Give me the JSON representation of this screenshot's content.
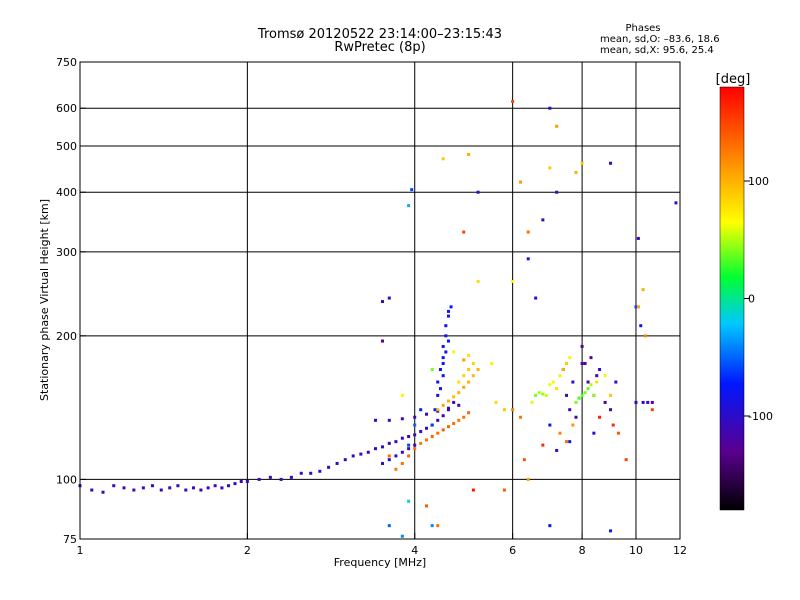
{
  "header": {
    "title": "Tromsø 20120522 23:14:00–23:15:43",
    "subtitle": "RwPretec (8p)",
    "stats_title": "Phases",
    "stats_line1": "mean, sd,O: –83.6, 18.6",
    "stats_line2": "mean, sd,X:  95.6, 25.4"
  },
  "chart_data": {
    "type": "scatter",
    "xlabel": "Frequency [MHz]",
    "ylabel": "Stationary phase Virtual Height [km]",
    "xscale": "log",
    "yscale": "log",
    "xlim": [
      1,
      12
    ],
    "ylim": [
      75,
      750
    ],
    "xticks": [
      1,
      2,
      4,
      6,
      8,
      10,
      12
    ],
    "yticks": [
      75,
      100,
      200,
      300,
      400,
      500,
      600,
      750
    ],
    "xgrid": [
      2,
      4,
      6,
      8,
      10
    ],
    "ygrid": [
      100,
      200,
      300,
      400,
      500,
      600
    ],
    "colorbar": {
      "label": "[deg]",
      "range": [
        -180,
        180
      ],
      "ticks": [
        100,
        0,
        -100
      ],
      "colormap": "rainbow (black → purple → blue → cyan → green → yellow → orange → red)"
    },
    "series": [
      {
        "values": [
          [
            1.0,
            97,
            -110
          ],
          [
            1.05,
            95,
            -105
          ],
          [
            1.1,
            94,
            -110
          ],
          [
            1.15,
            97,
            -105
          ],
          [
            1.2,
            96,
            -110
          ],
          [
            1.25,
            95,
            -115
          ],
          [
            1.3,
            96,
            -105
          ],
          [
            1.35,
            97,
            -110
          ],
          [
            1.4,
            95,
            -110
          ],
          [
            1.45,
            96,
            -105
          ],
          [
            1.5,
            97,
            -110
          ],
          [
            1.55,
            95,
            -105
          ],
          [
            1.6,
            96,
            -110
          ],
          [
            1.65,
            95,
            -115
          ],
          [
            1.7,
            96,
            -105
          ],
          [
            1.75,
            97,
            -110
          ],
          [
            1.8,
            96,
            -105
          ],
          [
            1.85,
            97,
            -110
          ],
          [
            1.9,
            98,
            -100
          ],
          [
            1.95,
            99,
            -110
          ],
          [
            2.0,
            99,
            -105
          ],
          [
            2.1,
            100,
            -105
          ],
          [
            2.2,
            101,
            -110
          ],
          [
            2.3,
            100,
            -100
          ],
          [
            2.4,
            101,
            -105
          ],
          [
            2.5,
            103,
            -110
          ],
          [
            2.6,
            103,
            -95
          ],
          [
            2.7,
            104,
            -105
          ],
          [
            2.8,
            106,
            -90
          ],
          [
            2.9,
            108,
            -100
          ],
          [
            3.0,
            110,
            -105
          ],
          [
            3.1,
            112,
            -110
          ],
          [
            3.2,
            113,
            -100
          ],
          [
            3.3,
            114,
            -110
          ],
          [
            3.4,
            116,
            -105
          ],
          [
            3.5,
            117,
            -100
          ],
          [
            3.6,
            119,
            -110
          ],
          [
            3.7,
            120,
            -105
          ],
          [
            3.8,
            122,
            -100
          ],
          [
            3.9,
            123,
            -110
          ],
          [
            4.0,
            124,
            -105
          ],
          [
            4.1,
            126,
            -100
          ],
          [
            4.2,
            128,
            -105
          ],
          [
            4.3,
            130,
            -110
          ],
          [
            4.4,
            133,
            -105
          ],
          [
            4.5,
            136,
            -110
          ],
          [
            4.6,
            140,
            -105
          ],
          [
            4.7,
            145,
            -110
          ],
          [
            3.5,
            108,
            -110
          ],
          [
            3.6,
            110,
            -100
          ],
          [
            3.7,
            112,
            -105
          ],
          [
            3.8,
            114,
            -110
          ],
          [
            3.9,
            116,
            -100
          ],
          [
            4.0,
            118,
            -105
          ],
          [
            3.4,
            133,
            -110
          ],
          [
            3.6,
            133,
            -110
          ],
          [
            3.8,
            134,
            -110
          ],
          [
            4.0,
            135,
            -110
          ],
          [
            4.2,
            137,
            -110
          ],
          [
            4.4,
            139,
            -115
          ],
          [
            4.6,
            141,
            -110
          ],
          [
            4.8,
            143,
            -110
          ],
          [
            3.5,
            195,
            -130
          ],
          [
            3.5,
            236,
            -100
          ],
          [
            3.6,
            240,
            -110
          ],
          [
            4.4,
            150,
            -90
          ],
          [
            4.4,
            160,
            -85
          ],
          [
            4.45,
            170,
            -80
          ],
          [
            4.5,
            180,
            -85
          ],
          [
            4.5,
            190,
            -80
          ],
          [
            4.55,
            200,
            -85
          ],
          [
            4.55,
            210,
            -80
          ],
          [
            4.6,
            220,
            -85
          ],
          [
            4.3,
            130,
            -60
          ],
          [
            4.35,
            140,
            -70
          ],
          [
            4.45,
            155,
            -75
          ],
          [
            4.5,
            165,
            -80
          ],
          [
            4.5,
            175,
            -75
          ],
          [
            4.55,
            185,
            -80
          ],
          [
            4.6,
            195,
            -70
          ],
          [
            4.6,
            225,
            -75
          ],
          [
            4.65,
            230,
            -80
          ],
          [
            3.9,
            118,
            -60
          ],
          [
            4.0,
            130,
            -50
          ],
          [
            4.1,
            140,
            -70
          ],
          [
            3.95,
            405,
            -60
          ],
          [
            3.9,
            375,
            -30
          ],
          [
            3.9,
            90,
            -10
          ],
          [
            4.3,
            80,
            -40
          ],
          [
            3.6,
            80,
            -50
          ],
          [
            3.8,
            76,
            -40
          ],
          [
            5.2,
            400,
            -100
          ],
          [
            7.0,
            600,
            -100
          ],
          [
            7.4,
            170,
            -110
          ],
          [
            7.5,
            150,
            -105
          ],
          [
            7.6,
            140,
            -110
          ],
          [
            7.7,
            160,
            -100
          ],
          [
            7.8,
            135,
            -115
          ],
          [
            8.0,
            175,
            -110
          ],
          [
            8.2,
            160,
            -120
          ],
          [
            8.4,
            150,
            -110
          ],
          [
            8.6,
            170,
            -100
          ],
          [
            8.8,
            145,
            -120
          ],
          [
            9.0,
            140,
            -110
          ],
          [
            9.2,
            160,
            -100
          ],
          [
            8.0,
            190,
            -130
          ],
          [
            8.1,
            175,
            -130
          ],
          [
            8.3,
            180,
            -130
          ],
          [
            8.5,
            165,
            -125
          ],
          [
            10.0,
            145,
            -110
          ],
          [
            10.3,
            145,
            -110
          ],
          [
            10.5,
            145,
            -105
          ],
          [
            10.7,
            145,
            -110
          ],
          [
            10.1,
            320,
            -110
          ],
          [
            10.0,
            230,
            -60
          ],
          [
            10.2,
            210,
            -80
          ],
          [
            6.4,
            290,
            -80
          ],
          [
            6.6,
            240,
            -90
          ],
          [
            6.8,
            350,
            -110
          ],
          [
            7.2,
            400,
            -105
          ],
          [
            9.0,
            460,
            -95
          ],
          [
            7.0,
            130,
            -80
          ],
          [
            7.2,
            115,
            -90
          ],
          [
            7.6,
            120,
            -85
          ],
          [
            8.4,
            125,
            -100
          ],
          [
            11.8,
            380,
            -90
          ],
          [
            7.0,
            80,
            -75
          ],
          [
            9.0,
            78,
            -70
          ]
        ]
      },
      {
        "values": [
          [
            3.6,
            112,
            130
          ],
          [
            3.7,
            105,
            125
          ],
          [
            3.8,
            108,
            130
          ],
          [
            3.9,
            112,
            135
          ],
          [
            4.0,
            116,
            130
          ],
          [
            4.1,
            119,
            125
          ],
          [
            4.2,
            121,
            130
          ],
          [
            4.3,
            123,
            135
          ],
          [
            4.4,
            125,
            130
          ],
          [
            4.5,
            127,
            140
          ],
          [
            4.6,
            129,
            135
          ],
          [
            4.7,
            131,
            130
          ],
          [
            4.8,
            133,
            125
          ],
          [
            4.9,
            135,
            130
          ],
          [
            5.0,
            138,
            135
          ],
          [
            4.4,
            140,
            100
          ],
          [
            4.5,
            143,
            105
          ],
          [
            4.6,
            146,
            100
          ],
          [
            4.7,
            149,
            95
          ],
          [
            4.8,
            152,
            100
          ],
          [
            4.9,
            156,
            105
          ],
          [
            5.0,
            160,
            100
          ],
          [
            5.1,
            165,
            95
          ],
          [
            5.2,
            170,
            100
          ],
          [
            4.8,
            160,
            80
          ],
          [
            4.9,
            165,
            85
          ],
          [
            5.0,
            170,
            90
          ],
          [
            5.1,
            175,
            85
          ],
          [
            5.0,
            182,
            80
          ],
          [
            3.8,
            150,
            70
          ],
          [
            4.3,
            170,
            40
          ],
          [
            4.7,
            185,
            60
          ],
          [
            5.5,
            175,
            70
          ],
          [
            5.6,
            145,
            80
          ],
          [
            5.8,
            140,
            90
          ],
          [
            6.0,
            140,
            120
          ],
          [
            6.2,
            135,
            130
          ],
          [
            6.5,
            145,
            60
          ],
          [
            6.6,
            150,
            40
          ],
          [
            6.7,
            152,
            50
          ],
          [
            6.8,
            151,
            45
          ],
          [
            6.9,
            150,
            55
          ],
          [
            7.0,
            158,
            60
          ],
          [
            7.1,
            160,
            70
          ],
          [
            7.2,
            155,
            80
          ],
          [
            7.3,
            165,
            60
          ],
          [
            7.4,
            170,
            100
          ],
          [
            7.5,
            175,
            90
          ],
          [
            7.6,
            180,
            70
          ],
          [
            7.8,
            145,
            40
          ],
          [
            7.9,
            148,
            30
          ],
          [
            8.0,
            150,
            35
          ],
          [
            8.1,
            152,
            40
          ],
          [
            8.2,
            155,
            35
          ],
          [
            8.3,
            158,
            50
          ],
          [
            8.4,
            150,
            45
          ],
          [
            8.5,
            160,
            80
          ],
          [
            7.3,
            125,
            120
          ],
          [
            7.5,
            120,
            130
          ],
          [
            7.7,
            130,
            110
          ],
          [
            8.8,
            165,
            70
          ],
          [
            9.0,
            150,
            90
          ],
          [
            6.2,
            420,
            110
          ],
          [
            6.4,
            330,
            130
          ],
          [
            7.0,
            450,
            90
          ],
          [
            6.0,
            260,
            70
          ],
          [
            5.2,
            260,
            80
          ],
          [
            4.5,
            470,
            90
          ],
          [
            4.9,
            330,
            150
          ],
          [
            5.1,
            95,
            170
          ],
          [
            5.0,
            480,
            100
          ],
          [
            5.8,
            95,
            140
          ],
          [
            6.4,
            100,
            110
          ],
          [
            9.3,
            125,
            140
          ],
          [
            9.6,
            110,
            150
          ],
          [
            10.3,
            250,
            100
          ],
          [
            10.1,
            230,
            110
          ],
          [
            10.4,
            200,
            120
          ],
          [
            8.0,
            460,
            90
          ],
          [
            7.2,
            550,
            110
          ],
          [
            6.0,
            620,
            150
          ],
          [
            7.8,
            440,
            100
          ],
          [
            9.1,
            130,
            160
          ],
          [
            8.6,
            135,
            165
          ],
          [
            10.7,
            140,
            150
          ],
          [
            6.3,
            110,
            140
          ],
          [
            6.8,
            118,
            160
          ],
          [
            4.4,
            80,
            130
          ],
          [
            4.2,
            88,
            140
          ],
          [
            4.9,
            178,
            110
          ]
        ]
      }
    ]
  }
}
